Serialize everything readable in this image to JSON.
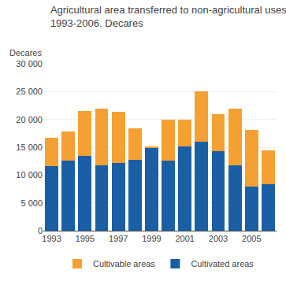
{
  "chart_data": {
    "type": "bar",
    "title": "Agricultural area transferred to non-agricultural uses.\n1993-2006. Decares",
    "ylabel": "Decares",
    "categories": [
      "1993",
      null,
      "1995",
      null,
      "1997",
      null,
      "1999",
      null,
      "2001",
      null,
      "2003",
      null,
      "2005",
      null
    ],
    "series": [
      {
        "name": "Cultivated areas",
        "color": "#1a5fa5",
        "values": [
          11600,
          12600,
          13400,
          11800,
          12200,
          12700,
          14900,
          12600,
          15100,
          16000,
          14300,
          11800,
          7900,
          8300
        ]
      },
      {
        "name": "Cultivable areas",
        "color": "#f5a033",
        "values": [
          5100,
          5300,
          8100,
          10200,
          9100,
          5700,
          200,
          7400,
          4800,
          9100,
          6700,
          10200,
          10200,
          6100
        ]
      }
    ],
    "stacked": true,
    "ylim": [
      0,
      30000
    ],
    "yticks": [
      0,
      {
        "value": 5000,
        "label": "5 000"
      },
      {
        "value": 10000,
        "label": "10 000"
      },
      {
        "value": 15000,
        "label": "15 000"
      },
      {
        "value": 20000,
        "label": "20 000"
      },
      {
        "value": 25000,
        "label": "25 000"
      },
      {
        "value": 30000,
        "label": "30 000"
      }
    ],
    "grid": true,
    "legend": "bottom"
  }
}
